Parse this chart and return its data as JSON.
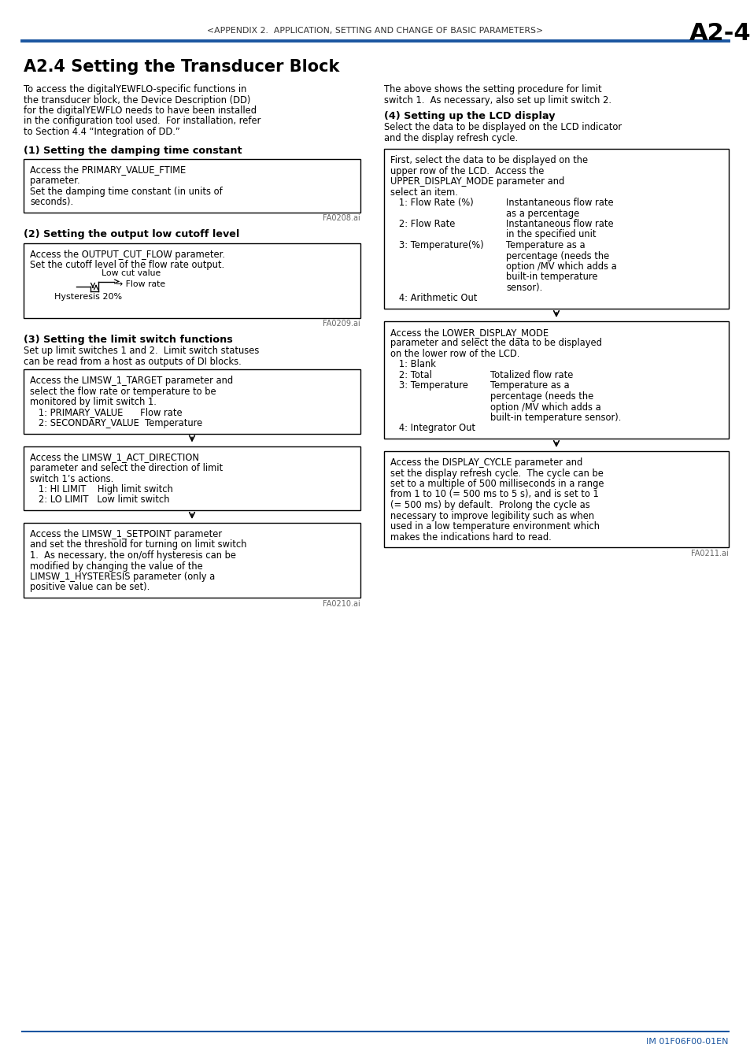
{
  "page_header": "<APPENDIX 2.  APPLICATION, SETTING AND CHANGE OF BASIC PARAMETERS>",
  "page_number": "A2-4",
  "header_line_color": "#1a4fa0",
  "title": "A2.4 Setting the Transducer Block",
  "section1_heading": "(1) Setting the damping time constant",
  "section1_fig": "FA0208.ai",
  "section2_heading": "(2) Setting the output low cutoff level",
  "section2_fig": "FA0209.ai",
  "section3_heading": "(3) Setting the limit switch functions",
  "section3_box3_fig": "FA0210.ai",
  "section4_heading": "(4) Setting up the LCD display",
  "section4_box3_fig": "FA0211.ai",
  "footer_text": "IM 01F06F00-01EN",
  "bg_color": "#ffffff",
  "header_line_color_hex": "#2255aa",
  "footer_line_color": "#2255aa"
}
